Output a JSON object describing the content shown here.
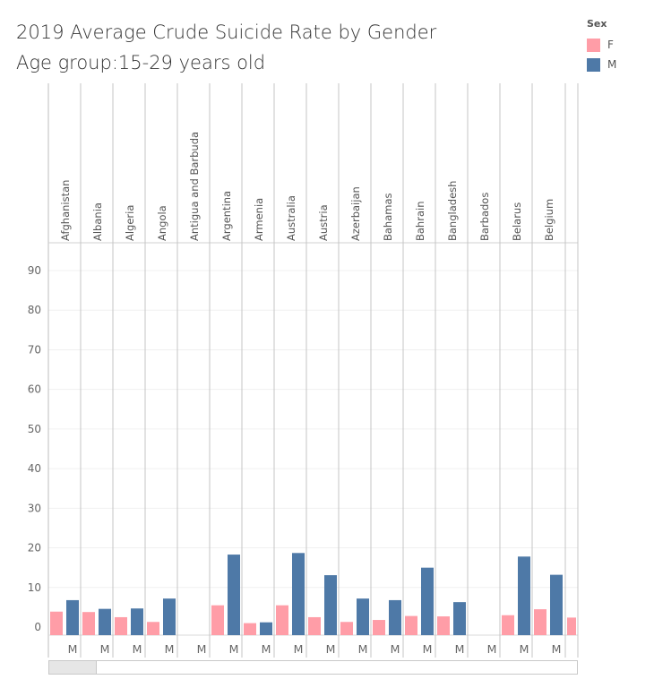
{
  "title_line1": "2019 Average Crude Suicide Rate by Gender",
  "title_line2": "Age group:15-29 years old",
  "legend": {
    "title": "Sex",
    "items": [
      {
        "label": "F",
        "color": "#ff9da7"
      },
      {
        "label": "M",
        "color": "#4e79a7"
      }
    ]
  },
  "chart_data": {
    "type": "bar",
    "title": "2019 Average Crude Suicide Rate by Gender",
    "subtitle": "Age group:15-29 years old",
    "categories": [
      "Afghanistan",
      "Albania",
      "Algeria",
      "Angola",
      "Antigua and Barbuda",
      "Argentina",
      "Armenia",
      "Australia",
      "Austria",
      "Azerbaijan",
      "Bahamas",
      "Bahrain",
      "Bangladesh",
      "Barbados",
      "Belarus",
      "Belgium"
    ],
    "series": [
      {
        "name": "F",
        "color": "#ff9da7",
        "values": [
          3.9,
          3.8,
          2.5,
          1.3,
          0,
          5.5,
          1.0,
          5.5,
          2.5,
          1.3,
          1.8,
          2.8,
          2.7,
          0,
          3.0,
          4.5
        ]
      },
      {
        "name": "M",
        "color": "#4e79a7",
        "values": [
          6.8,
          4.6,
          4.7,
          7.2,
          0,
          18.3,
          1.2,
          18.7,
          13.1,
          7.2,
          6.8,
          15.0,
          6.3,
          0,
          17.8,
          13.2
        ]
      }
    ],
    "y_ticks": [
      0,
      10,
      20,
      30,
      40,
      50,
      60,
      70,
      80,
      90
    ],
    "ylim": [
      -2,
      95
    ],
    "gender_axis_labels": [
      "M",
      "M",
      "M",
      "M",
      "M",
      "M",
      "M",
      "M",
      "M",
      "M",
      "M",
      "M",
      "M",
      "M",
      "M",
      "M"
    ],
    "grid": true
  }
}
